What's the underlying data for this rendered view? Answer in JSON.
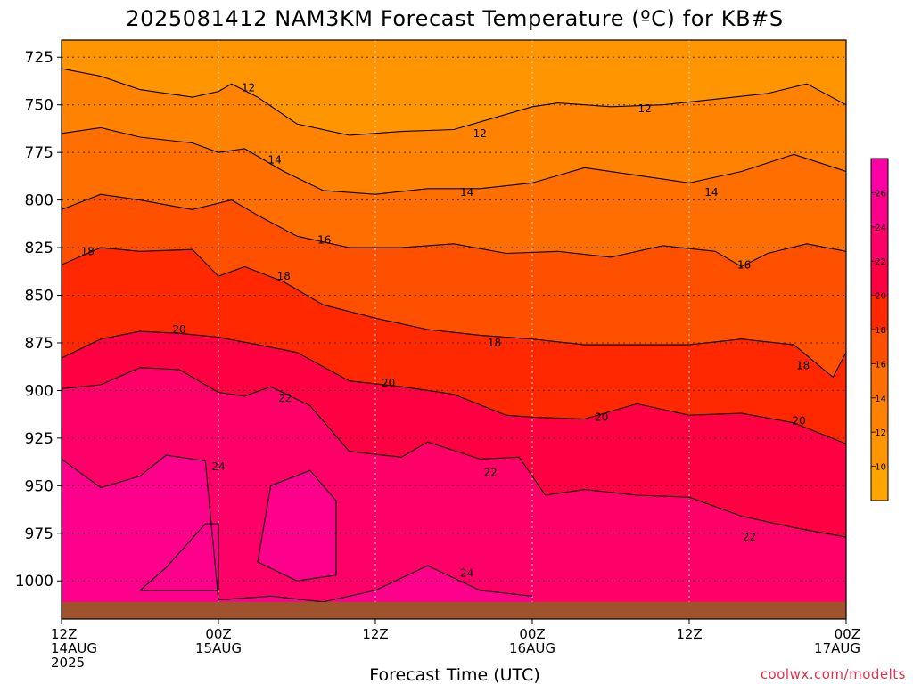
{
  "chart_data": {
    "type": "heatmap",
    "title": "2025081412 NAM3KM Forecast Temperature (ºC) for KB#S",
    "xlabel": "Forecast Time (UTC)",
    "ylabel": "",
    "x_ticks": [
      {
        "hour": 0,
        "line1": "12Z",
        "line2": "14AUG",
        "line3": "2025"
      },
      {
        "hour": 12,
        "line1": "00Z",
        "line2": "15AUG",
        "line3": ""
      },
      {
        "hour": 24,
        "line1": "12Z",
        "line2": "",
        "line3": ""
      },
      {
        "hour": 36,
        "line1": "00Z",
        "line2": "16AUG",
        "line3": ""
      },
      {
        "hour": 48,
        "line1": "12Z",
        "line2": "",
        "line3": ""
      },
      {
        "hour": 60,
        "line1": "00Z",
        "line2": "17AUG",
        "line3": ""
      }
    ],
    "xlim": [
      0,
      60
    ],
    "y_axis": "pressure (hPa), inverted",
    "y_ticks": [
      "725",
      "750",
      "775",
      "800",
      "825",
      "850",
      "875",
      "900",
      "925",
      "950",
      "975",
      "1000"
    ],
    "ylim": [
      1020,
      716
    ],
    "surface_pressure": 1011,
    "grid": true,
    "colorbar": {
      "placement": "right",
      "levels": [
        10,
        12,
        14,
        16,
        18,
        20,
        22,
        24,
        26
      ],
      "labels": [
        "10",
        "12",
        "14",
        "16",
        "18",
        "20",
        "22",
        "24",
        "26"
      ],
      "colors": [
        "#ffa500",
        "#ff9500",
        "#ff8200",
        "#ff6e00",
        "#ff5000",
        "#ff2800",
        "#ff0042",
        "#ff0068",
        "#ff008c",
        "#ff00a6"
      ]
    },
    "contours": [
      {
        "level": 12,
        "points": [
          [
            0,
            731
          ],
          [
            3,
            735
          ],
          [
            6,
            742
          ],
          [
            10,
            746
          ],
          [
            12,
            743
          ],
          [
            13,
            739
          ],
          [
            15,
            746
          ],
          [
            18,
            760
          ],
          [
            22,
            766
          ],
          [
            26,
            764
          ],
          [
            30,
            763
          ],
          [
            33,
            757
          ],
          [
            36,
            751
          ],
          [
            38,
            749
          ],
          [
            42,
            751
          ],
          [
            46,
            750
          ],
          [
            50,
            747
          ],
          [
            54,
            744
          ],
          [
            57,
            739
          ],
          [
            60,
            750
          ]
        ]
      },
      {
        "level": 14,
        "points": [
          [
            0,
            765
          ],
          [
            3,
            762
          ],
          [
            6,
            767
          ],
          [
            10,
            770
          ],
          [
            12,
            775
          ],
          [
            14,
            773
          ],
          [
            17,
            785
          ],
          [
            20,
            795
          ],
          [
            24,
            797
          ],
          [
            28,
            794
          ],
          [
            32,
            794
          ],
          [
            36,
            791
          ],
          [
            40,
            783
          ],
          [
            44,
            787
          ],
          [
            48,
            791
          ],
          [
            52,
            785
          ],
          [
            56,
            776
          ],
          [
            60,
            785
          ]
        ]
      },
      {
        "level": 16,
        "points": [
          [
            0,
            805
          ],
          [
            3,
            797
          ],
          [
            6,
            800
          ],
          [
            10,
            805
          ],
          [
            13,
            800
          ],
          [
            15,
            808
          ],
          [
            18,
            819
          ],
          [
            22,
            825
          ],
          [
            26,
            825
          ],
          [
            30,
            823
          ],
          [
            34,
            828
          ],
          [
            38,
            827
          ],
          [
            42,
            830
          ],
          [
            46,
            824
          ],
          [
            50,
            827
          ],
          [
            52,
            835
          ],
          [
            54,
            828
          ],
          [
            57,
            823
          ],
          [
            60,
            827
          ]
        ]
      },
      {
        "level": 18,
        "points": [
          [
            0,
            834
          ],
          [
            3,
            825
          ],
          [
            6,
            827
          ],
          [
            10,
            826
          ],
          [
            12,
            840
          ],
          [
            14,
            835
          ],
          [
            17,
            843
          ],
          [
            20,
            855
          ],
          [
            24,
            862
          ],
          [
            28,
            868
          ],
          [
            32,
            871
          ],
          [
            36,
            873
          ],
          [
            40,
            876
          ],
          [
            44,
            876
          ],
          [
            48,
            876
          ],
          [
            52,
            873
          ],
          [
            56,
            876
          ],
          [
            59,
            893
          ],
          [
            60,
            880
          ]
        ]
      },
      {
        "level": 20,
        "points": [
          [
            0,
            883
          ],
          [
            3,
            873
          ],
          [
            6,
            869
          ],
          [
            9,
            870
          ],
          [
            12,
            872
          ],
          [
            15,
            876
          ],
          [
            18,
            880
          ],
          [
            22,
            895
          ],
          [
            26,
            898
          ],
          [
            30,
            902
          ],
          [
            34,
            913
          ],
          [
            36,
            914
          ],
          [
            40,
            915
          ],
          [
            44,
            907
          ],
          [
            48,
            913
          ],
          [
            52,
            912
          ],
          [
            56,
            917
          ],
          [
            60,
            928
          ]
        ]
      },
      {
        "level": 22,
        "points": [
          [
            0,
            899
          ],
          [
            3,
            897
          ],
          [
            6,
            888
          ],
          [
            9,
            889
          ],
          [
            12,
            901
          ],
          [
            14,
            903
          ],
          [
            16,
            898
          ],
          [
            19,
            908
          ],
          [
            22,
            932
          ],
          [
            26,
            935
          ],
          [
            28,
            927
          ],
          [
            32,
            936
          ],
          [
            35,
            935
          ],
          [
            37,
            955
          ],
          [
            40,
            952
          ],
          [
            44,
            955
          ],
          [
            48,
            956
          ],
          [
            52,
            966
          ],
          [
            56,
            972
          ],
          [
            60,
            977
          ]
        ]
      },
      {
        "level": 24,
        "points": [
          [
            0,
            936
          ],
          [
            3,
            951
          ],
          [
            6,
            945
          ],
          [
            8,
            934
          ],
          [
            11,
            937
          ],
          [
            12,
            1010
          ],
          [
            16,
            1008
          ],
          [
            20,
            1011
          ],
          [
            24,
            1005
          ],
          [
            28,
            992
          ],
          [
            32,
            1005
          ],
          [
            36,
            1008
          ]
        ]
      },
      {
        "level": 24,
        "points": [
          [
            6,
            1005
          ],
          [
            8,
            993
          ],
          [
            11,
            970
          ],
          [
            12,
            970
          ],
          [
            12,
            1005
          ],
          [
            6,
            1005
          ]
        ]
      },
      {
        "level": 24,
        "points": [
          [
            15,
            990
          ],
          [
            16,
            950
          ],
          [
            19,
            942
          ],
          [
            21,
            958
          ],
          [
            21,
            997
          ],
          [
            18,
            1000
          ],
          [
            15,
            990
          ]
        ]
      }
    ],
    "contour_labels": [
      {
        "level": 12,
        "text": "12",
        "x": 14.3,
        "p": 741
      },
      {
        "level": 12,
        "text": "12",
        "x": 32.0,
        "p": 765
      },
      {
        "level": 12,
        "text": "12",
        "x": 44.6,
        "p": 752
      },
      {
        "level": 14,
        "text": "14",
        "x": 16.3,
        "p": 779
      },
      {
        "level": 14,
        "text": "14",
        "x": 31.0,
        "p": 796
      },
      {
        "level": 14,
        "text": "14",
        "x": 49.7,
        "p": 796
      },
      {
        "level": 16,
        "text": "16",
        "x": 20.1,
        "p": 821
      },
      {
        "level": 16,
        "text": "16",
        "x": 52.2,
        "p": 834
      },
      {
        "level": 18,
        "text": "18",
        "x": 2.0,
        "p": 827
      },
      {
        "level": 18,
        "text": "18",
        "x": 17.0,
        "p": 840
      },
      {
        "level": 18,
        "text": "18",
        "x": 33.1,
        "p": 875
      },
      {
        "level": 18,
        "text": "18",
        "x": 56.7,
        "p": 887
      },
      {
        "level": 20,
        "text": "20",
        "x": 9.0,
        "p": 868
      },
      {
        "level": 20,
        "text": "20",
        "x": 25.0,
        "p": 896
      },
      {
        "level": 20,
        "text": "20",
        "x": 41.3,
        "p": 914
      },
      {
        "level": 20,
        "text": "20",
        "x": 56.4,
        "p": 916
      },
      {
        "level": 22,
        "text": "22",
        "x": 17.1,
        "p": 904
      },
      {
        "level": 22,
        "text": "22",
        "x": 32.8,
        "p": 943
      },
      {
        "level": 22,
        "text": "22",
        "x": 52.6,
        "p": 977
      },
      {
        "level": 24,
        "text": "24",
        "x": 12.0,
        "p": 940
      },
      {
        "level": 24,
        "text": "24",
        "x": 31.0,
        "p": 996
      }
    ]
  },
  "credit": "coolwx.com/modelts"
}
